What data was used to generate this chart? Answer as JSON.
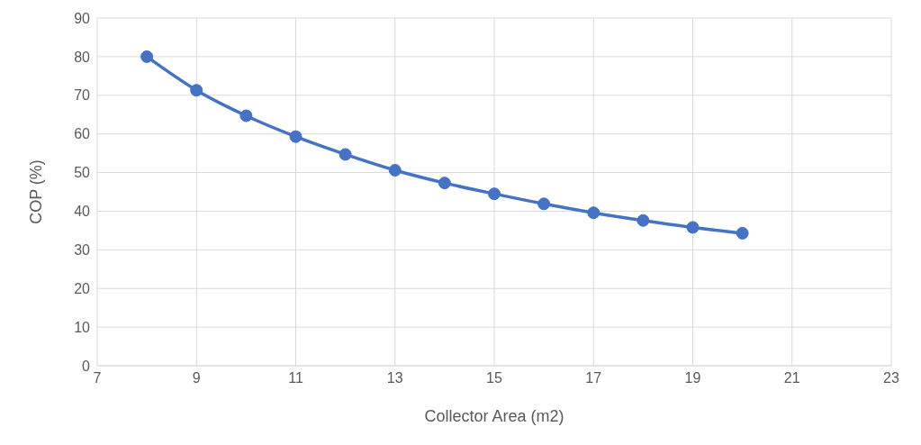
{
  "chart_data": {
    "type": "line",
    "xlabel": "Collector Area (m2)",
    "ylabel": "COP (%)",
    "x": [
      8,
      9,
      10,
      11,
      12,
      13,
      14,
      15,
      16,
      17,
      18,
      19,
      20
    ],
    "series": [
      {
        "color": "#4472c4",
        "values": [
          80,
          71.3,
          64.7,
          59.3,
          54.7,
          50.6,
          47.3,
          44.5,
          41.9,
          39.6,
          37.6,
          35.8,
          34.3
        ]
      }
    ],
    "xlim": [
      7,
      23
    ],
    "xticks": [
      7,
      9,
      11,
      13,
      15,
      17,
      19,
      21,
      23
    ],
    "ylim": [
      0,
      90
    ],
    "yticks": [
      0,
      10,
      20,
      30,
      40,
      50,
      60,
      70,
      80,
      90
    ],
    "grid": true,
    "marker": "circle",
    "line_style": "solid"
  }
}
